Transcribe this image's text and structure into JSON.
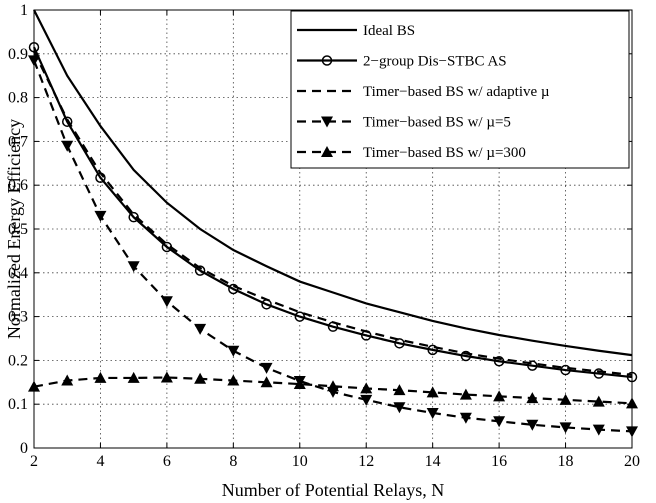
{
  "chart_data": {
    "type": "line",
    "title": "",
    "xlabel": "Number of Potential Relays, N",
    "ylabel": "Normalized Energy Efficiency",
    "xlim": [
      2,
      20
    ],
    "ylim": [
      0,
      1
    ],
    "xticks": [
      2,
      4,
      6,
      8,
      10,
      12,
      14,
      16,
      18,
      20
    ],
    "yticks": [
      0,
      0.1,
      0.2,
      0.3,
      0.4,
      0.5,
      0.6,
      0.7,
      0.8,
      0.9,
      1
    ],
    "ytick_labels": [
      "0",
      "0.1",
      "0.2",
      "0.3",
      "0.4",
      "0.5",
      "0.6",
      "0.7",
      "0.8",
      "0.9",
      "1"
    ],
    "grid": "dotted",
    "legend_position": "top-right",
    "x": [
      2,
      3,
      4,
      5,
      6,
      7,
      8,
      9,
      10,
      11,
      12,
      13,
      14,
      15,
      16,
      17,
      18,
      19,
      20
    ],
    "series": [
      {
        "name": "Ideal BS",
        "line": "solid",
        "marker": "none",
        "values": [
          1.0,
          0.85,
          0.735,
          0.635,
          0.56,
          0.5,
          0.452,
          0.415,
          0.38,
          0.355,
          0.33,
          0.31,
          0.29,
          0.273,
          0.258,
          0.245,
          0.233,
          0.222,
          0.212
        ]
      },
      {
        "name": "2−group Dis−STBC AS",
        "line": "solid",
        "marker": "circle",
        "values": [
          0.915,
          0.745,
          0.617,
          0.527,
          0.459,
          0.405,
          0.363,
          0.328,
          0.3,
          0.277,
          0.257,
          0.239,
          0.224,
          0.21,
          0.198,
          0.188,
          0.178,
          0.17,
          0.162
        ]
      },
      {
        "name": "Timer−based BS w/ adaptive µ",
        "line": "dashed",
        "marker": "none",
        "values": [
          0.905,
          0.75,
          0.628,
          0.533,
          0.465,
          0.411,
          0.37,
          0.339,
          0.31,
          0.287,
          0.266,
          0.247,
          0.231,
          0.216,
          0.204,
          0.193,
          0.183,
          0.175,
          0.167
        ]
      },
      {
        "name": "Timer−based BS w/ µ=5",
        "line": "dashed",
        "marker": "triangle-down",
        "values": [
          0.885,
          0.69,
          0.53,
          0.415,
          0.335,
          0.272,
          0.222,
          0.183,
          0.153,
          0.128,
          0.11,
          0.093,
          0.08,
          0.069,
          0.061,
          0.053,
          0.047,
          0.042,
          0.038
        ]
      },
      {
        "name": "Timer−based BS w/ µ=300",
        "line": "dashed",
        "marker": "triangle-up",
        "values": [
          0.14,
          0.154,
          0.16,
          0.16,
          0.161,
          0.158,
          0.154,
          0.15,
          0.146,
          0.141,
          0.136,
          0.132,
          0.127,
          0.122,
          0.118,
          0.114,
          0.11,
          0.106,
          0.102
        ]
      }
    ]
  }
}
